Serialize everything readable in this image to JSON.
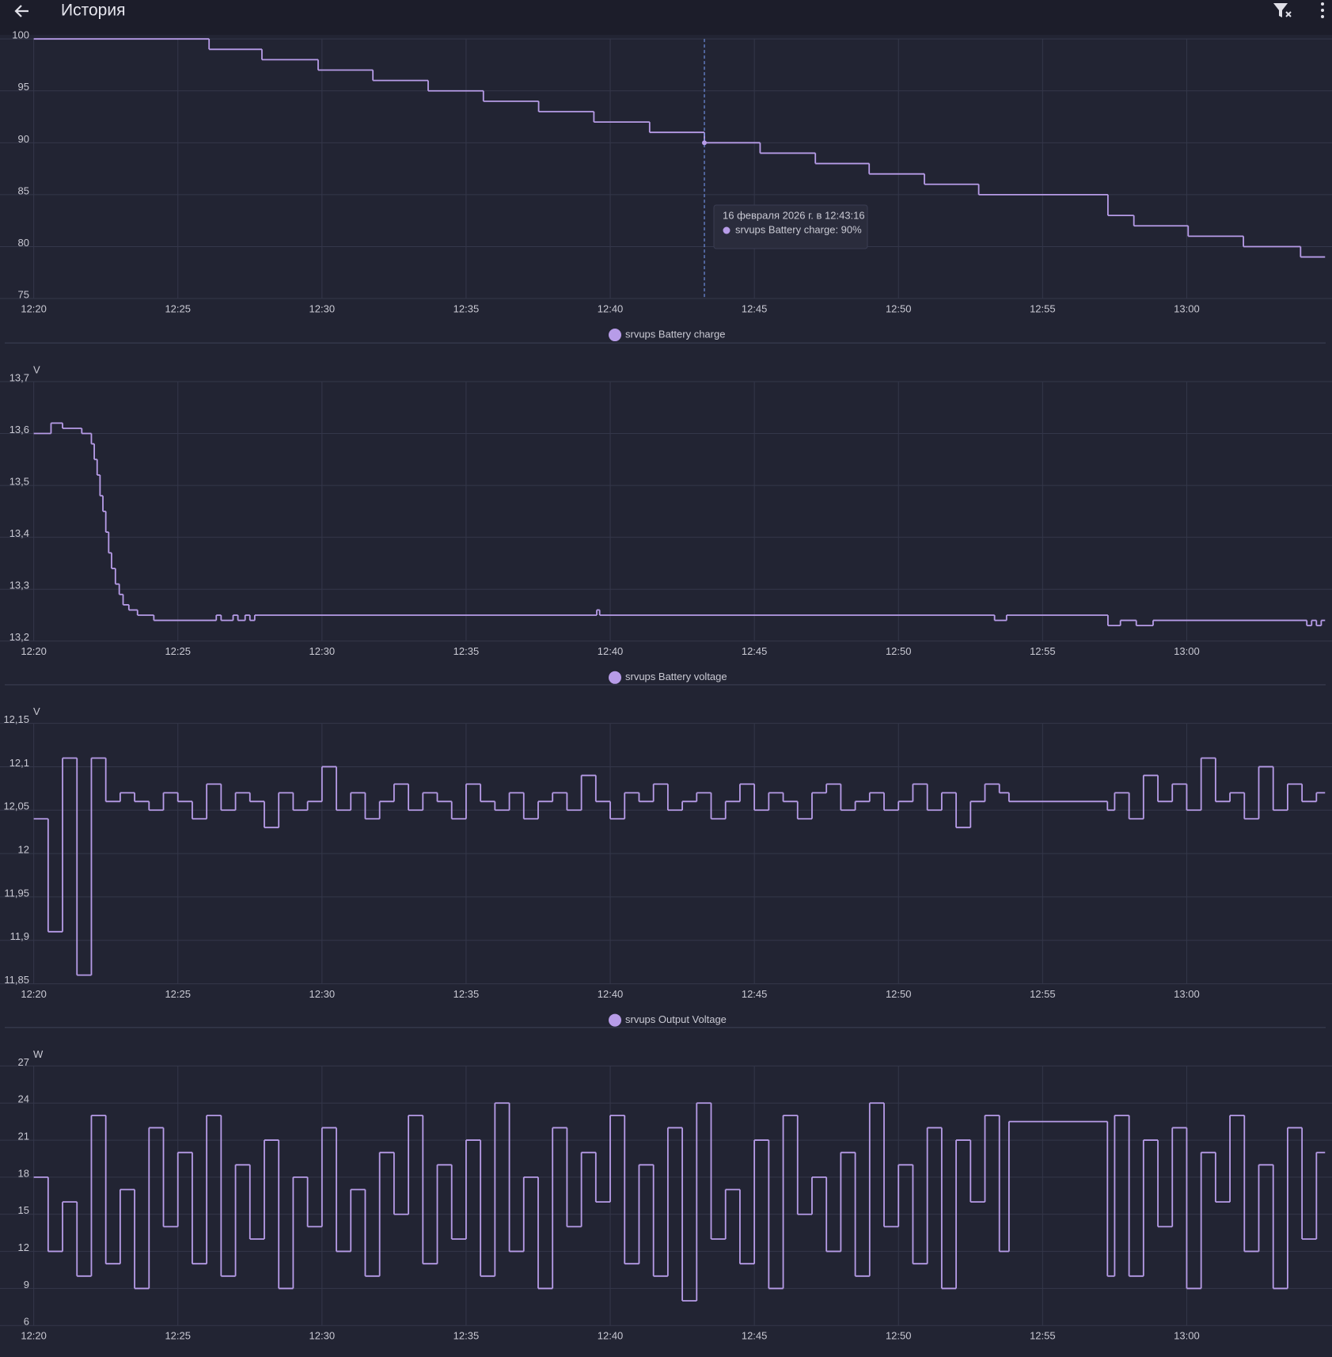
{
  "header": {
    "title": "История"
  },
  "chart_data": [
    {
      "type": "step",
      "xlim": [
        "12:20:00",
        "13:04:48"
      ],
      "xticks": [
        "12:20",
        "12:25",
        "12:30",
        "12:35",
        "12:40",
        "12:45",
        "12:50",
        "12:55",
        "13:00"
      ],
      "ylim": [
        75,
        100
      ],
      "yticks": [
        75,
        80,
        85,
        90,
        95,
        100
      ],
      "grid": true,
      "x": [
        "12:20:00",
        "12:26:05",
        "12:27:55",
        "12:29:52",
        "12:31:46",
        "12:33:41",
        "12:35:36",
        "12:37:31",
        "12:39:26",
        "12:41:22",
        "12:43:16",
        "12:45:12",
        "12:47:07",
        "12:48:59",
        "12:50:54",
        "12:52:47",
        "12:57:16",
        "12:58:10",
        "13:00:03",
        "13:01:58",
        "13:03:57"
      ],
      "series": [
        {
          "name": "srvups Battery charge",
          "color": "#b79ce8",
          "values": [
            100,
            99,
            98,
            97,
            96,
            95,
            94,
            93,
            92,
            91,
            90,
            89,
            88,
            87,
            86,
            85,
            83,
            82,
            81,
            80,
            79
          ]
        }
      ],
      "tooltip": {
        "date": "16 февраля 2026 г. в 12:43:16",
        "text": "srvups Battery charge: 90%"
      }
    },
    {
      "type": "step",
      "unit": "V",
      "xlim": [
        "12:20:00",
        "13:04:48"
      ],
      "xticks": [
        "12:20",
        "12:25",
        "12:30",
        "12:35",
        "12:40",
        "12:45",
        "12:50",
        "12:55",
        "13:00"
      ],
      "ylim": [
        13.2,
        13.7
      ],
      "yticks": [
        {
          "value": 13.2,
          "label": "13,2"
        },
        {
          "value": 13.3,
          "label": "13,3"
        },
        {
          "value": 13.4,
          "label": "13,4"
        },
        {
          "value": 13.5,
          "label": "13,5"
        },
        {
          "value": 13.6,
          "label": "13,6"
        },
        {
          "value": 13.7,
          "label": "13,7"
        }
      ],
      "grid": true,
      "x": [
        "12:20:00",
        "12:20:36",
        "12:21:00",
        "12:21:40",
        "12:22:00",
        "12:22:06",
        "12:22:12",
        "12:22:18",
        "12:22:24",
        "12:22:30",
        "12:22:36",
        "12:22:42",
        "12:22:50",
        "12:22:58",
        "12:23:06",
        "12:23:18",
        "12:23:36",
        "12:24:10",
        "12:26:20",
        "12:26:30",
        "12:26:55",
        "12:27:05",
        "12:27:20",
        "12:27:30",
        "12:27:40",
        "12:39:32",
        "12:39:38",
        "12:53:20",
        "12:53:45",
        "12:57:16",
        "12:57:42",
        "12:58:15",
        "12:58:50",
        "13:04:10",
        "13:04:20",
        "13:04:30",
        "13:04:40"
      ],
      "series": [
        {
          "name": "srvups Battery voltage",
          "color": "#b79ce8",
          "values": [
            13.6,
            13.62,
            13.61,
            13.6,
            13.58,
            13.55,
            13.52,
            13.48,
            13.45,
            13.41,
            13.37,
            13.34,
            13.31,
            13.29,
            13.27,
            13.26,
            13.25,
            13.24,
            13.25,
            13.24,
            13.25,
            13.24,
            13.25,
            13.24,
            13.25,
            13.26,
            13.25,
            13.24,
            13.25,
            13.23,
            13.24,
            13.23,
            13.24,
            13.23,
            13.24,
            13.23,
            13.24
          ]
        }
      ]
    },
    {
      "type": "step",
      "unit": "V",
      "xlim": [
        "12:20:00",
        "13:04:48"
      ],
      "xticks": [
        "12:20",
        "12:25",
        "12:30",
        "12:35",
        "12:40",
        "12:45",
        "12:50",
        "12:55",
        "13:00"
      ],
      "ylim": [
        11.85,
        12.15
      ],
      "yticks": [
        {
          "value": 11.85,
          "label": "11,85"
        },
        {
          "value": 11.9,
          "label": "11,9"
        },
        {
          "value": 11.95,
          "label": "11,95"
        },
        12,
        {
          "value": 12.05,
          "label": "12,05"
        },
        {
          "value": 12.1,
          "label": "12,1"
        },
        {
          "value": 12.15,
          "label": "12,15"
        }
      ],
      "grid": true,
      "x": [
        "12:20:00",
        "12:20:30",
        "12:21:00",
        "12:21:30",
        "12:22:00",
        "12:22:30",
        "12:23:00",
        "12:23:30",
        "12:24:00",
        "12:24:30",
        "12:25:00",
        "12:25:30",
        "12:26:00",
        "12:26:30",
        "12:27:00",
        "12:27:30",
        "12:28:00",
        "12:28:30",
        "12:29:00",
        "12:29:30",
        "12:30:00",
        "12:30:30",
        "12:31:00",
        "12:31:30",
        "12:32:00",
        "12:32:30",
        "12:33:00",
        "12:33:30",
        "12:34:00",
        "12:34:30",
        "12:35:00",
        "12:35:30",
        "12:36:00",
        "12:36:30",
        "12:37:00",
        "12:37:30",
        "12:38:00",
        "12:38:30",
        "12:39:00",
        "12:39:30",
        "12:40:00",
        "12:40:30",
        "12:41:00",
        "12:41:30",
        "12:42:00",
        "12:42:30",
        "12:43:00",
        "12:43:30",
        "12:44:00",
        "12:44:30",
        "12:45:00",
        "12:45:30",
        "12:46:00",
        "12:46:30",
        "12:47:00",
        "12:47:30",
        "12:48:00",
        "12:48:30",
        "12:49:00",
        "12:49:30",
        "12:50:00",
        "12:50:30",
        "12:51:00",
        "12:51:30",
        "12:52:00",
        "12:52:30",
        "12:53:00",
        "12:53:30",
        "12:53:50",
        "12:57:15",
        "12:57:30",
        "12:58:00",
        "12:58:30",
        "12:59:00",
        "12:59:30",
        "13:00:00",
        "13:00:30",
        "13:01:00",
        "13:01:30",
        "13:02:00",
        "13:02:30",
        "13:03:00",
        "13:03:30",
        "13:04:00",
        "13:04:30"
      ],
      "series": [
        {
          "name": "srvups Output Voltage",
          "color": "#b79ce8",
          "values": [
            12.04,
            11.91,
            12.11,
            11.86,
            12.11,
            12.06,
            12.07,
            12.06,
            12.05,
            12.07,
            12.06,
            12.04,
            12.08,
            12.05,
            12.07,
            12.06,
            12.03,
            12.07,
            12.05,
            12.06,
            12.1,
            12.05,
            12.07,
            12.04,
            12.06,
            12.08,
            12.05,
            12.07,
            12.06,
            12.04,
            12.08,
            12.06,
            12.05,
            12.07,
            12.04,
            12.06,
            12.07,
            12.05,
            12.09,
            12.06,
            12.04,
            12.07,
            12.06,
            12.08,
            12.05,
            12.06,
            12.07,
            12.04,
            12.06,
            12.08,
            12.05,
            12.07,
            12.06,
            12.04,
            12.07,
            12.08,
            12.05,
            12.06,
            12.07,
            12.05,
            12.06,
            12.08,
            12.05,
            12.07,
            12.03,
            12.06,
            12.08,
            12.07,
            12.06,
            12.05,
            12.07,
            12.04,
            12.09,
            12.06,
            12.08,
            12.05,
            12.11,
            12.06,
            12.07,
            12.04,
            12.1,
            12.05,
            12.08,
            12.06,
            12.07
          ]
        }
      ]
    },
    {
      "type": "step",
      "unit": "W",
      "xlim": [
        "12:20:00",
        "13:04:48"
      ],
      "xticks": [
        "12:20",
        "12:25",
        "12:30",
        "12:35",
        "12:40",
        "12:45",
        "12:50",
        "12:55",
        "13:00"
      ],
      "ylim": [
        6,
        27
      ],
      "yticks": [
        6,
        9,
        12,
        15,
        18,
        21,
        24,
        27
      ],
      "grid": true,
      "x": [
        "12:20:00",
        "12:20:30",
        "12:21:00",
        "12:21:30",
        "12:22:00",
        "12:22:30",
        "12:23:00",
        "12:23:30",
        "12:24:00",
        "12:24:30",
        "12:25:00",
        "12:25:30",
        "12:26:00",
        "12:26:30",
        "12:27:00",
        "12:27:30",
        "12:28:00",
        "12:28:30",
        "12:29:00",
        "12:29:30",
        "12:30:00",
        "12:30:30",
        "12:31:00",
        "12:31:30",
        "12:32:00",
        "12:32:30",
        "12:33:00",
        "12:33:30",
        "12:34:00",
        "12:34:30",
        "12:35:00",
        "12:35:30",
        "12:36:00",
        "12:36:30",
        "12:37:00",
        "12:37:30",
        "12:38:00",
        "12:38:30",
        "12:39:00",
        "12:39:30",
        "12:40:00",
        "12:40:30",
        "12:41:00",
        "12:41:30",
        "12:42:00",
        "12:42:30",
        "12:43:00",
        "12:43:30",
        "12:44:00",
        "12:44:30",
        "12:45:00",
        "12:45:30",
        "12:46:00",
        "12:46:30",
        "12:47:00",
        "12:47:30",
        "12:48:00",
        "12:48:30",
        "12:49:00",
        "12:49:30",
        "12:50:00",
        "12:50:30",
        "12:51:00",
        "12:51:30",
        "12:52:00",
        "12:52:30",
        "12:53:00",
        "12:53:30",
        "12:53:50",
        "12:57:15",
        "12:57:30",
        "12:58:00",
        "12:58:30",
        "12:59:00",
        "12:59:30",
        "13:00:00",
        "13:00:30",
        "13:01:00",
        "13:01:30",
        "13:02:00",
        "13:02:30",
        "13:03:00",
        "13:03:30",
        "13:04:00",
        "13:04:30"
      ],
      "series": [
        {
          "color": "#b79ce8",
          "values": [
            18,
            12,
            16,
            10,
            23,
            11,
            17,
            9,
            22,
            14,
            20,
            11,
            23,
            10,
            19,
            13,
            21,
            9,
            18,
            14,
            22,
            12,
            17,
            10,
            20,
            15,
            23,
            11,
            19,
            13,
            21,
            10,
            24,
            12,
            18,
            9,
            22,
            14,
            20,
            16,
            23,
            11,
            19,
            10,
            22,
            8,
            24,
            13,
            17,
            11,
            21,
            9,
            23,
            15,
            18,
            12,
            20,
            10,
            24,
            14,
            19,
            11,
            22,
            9,
            21,
            16,
            23,
            12,
            22.5,
            10,
            23,
            10,
            21,
            14,
            22,
            9,
            20,
            16,
            23,
            12,
            19,
            9,
            22,
            13,
            20
          ]
        }
      ]
    }
  ]
}
